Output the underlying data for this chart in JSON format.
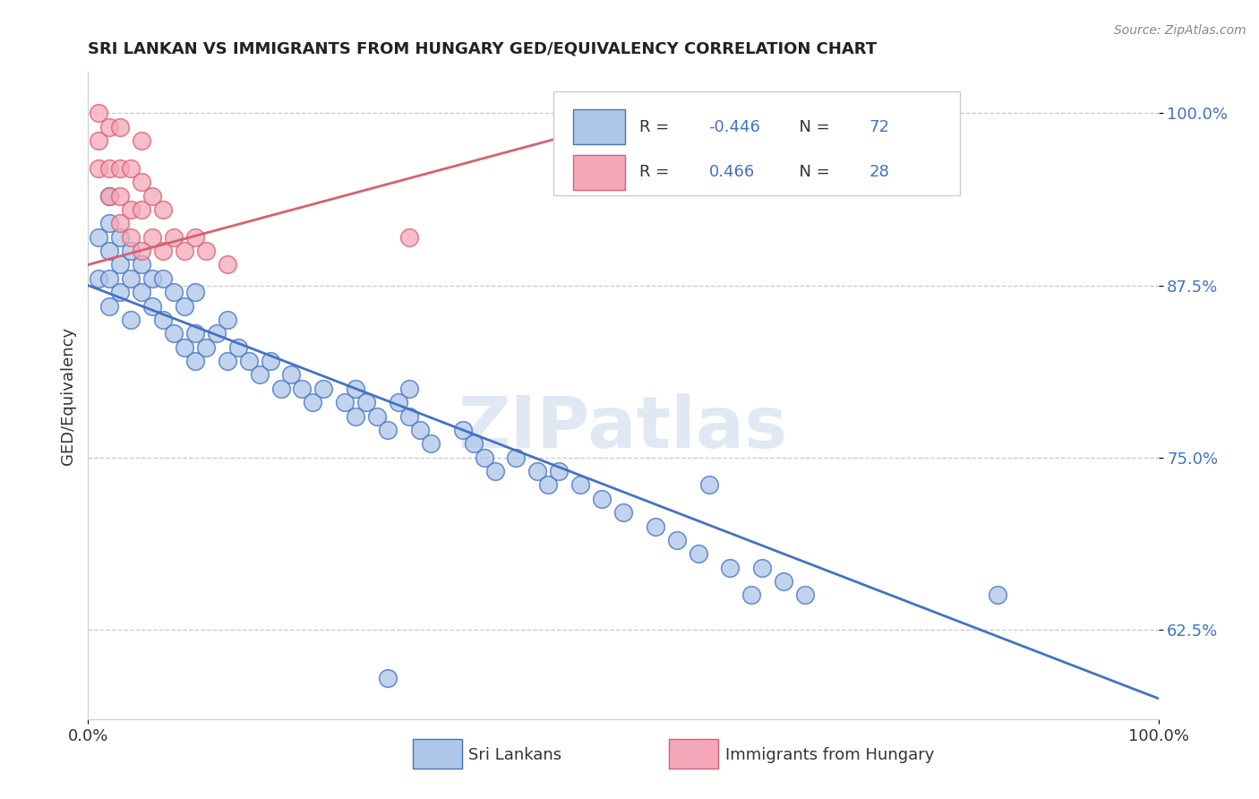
{
  "title": "SRI LANKAN VS IMMIGRANTS FROM HUNGARY GED/EQUIVALENCY CORRELATION CHART",
  "source": "Source: ZipAtlas.com",
  "ylabel": "GED/Equivalency",
  "xlim": [
    0.0,
    1.0
  ],
  "ylim": [
    0.56,
    1.03
  ],
  "yticks": [
    0.625,
    0.75,
    0.875,
    1.0
  ],
  "ytick_labels": [
    "62.5%",
    "75.0%",
    "87.5%",
    "100.0%"
  ],
  "xticks": [
    0.0,
    1.0
  ],
  "xtick_labels": [
    "0.0%",
    "100.0%"
  ],
  "sri_lankans_R": -0.446,
  "sri_lankans_N": 72,
  "hungary_R": 0.466,
  "hungary_N": 28,
  "sri_lanka_color": "#aec6e8",
  "hungary_color": "#f4a7b9",
  "sri_lanka_line_color": "#4472c4",
  "hungary_line_color": "#d9606e",
  "watermark": "ZIPatlas",
  "sl_line_x0": 0.0,
  "sl_line_y0": 0.875,
  "sl_line_x1": 1.0,
  "sl_line_y1": 0.575,
  "hu_line_x0": 0.0,
  "hu_line_y0": 0.89,
  "hu_line_x1": 0.55,
  "hu_line_y1": 1.005,
  "sl_x": [
    0.01,
    0.01,
    0.02,
    0.02,
    0.02,
    0.02,
    0.02,
    0.03,
    0.03,
    0.03,
    0.04,
    0.04,
    0.04,
    0.05,
    0.05,
    0.06,
    0.06,
    0.07,
    0.07,
    0.08,
    0.08,
    0.09,
    0.09,
    0.1,
    0.1,
    0.1,
    0.11,
    0.12,
    0.13,
    0.13,
    0.14,
    0.15,
    0.16,
    0.17,
    0.18,
    0.19,
    0.2,
    0.21,
    0.22,
    0.24,
    0.25,
    0.25,
    0.26,
    0.27,
    0.28,
    0.29,
    0.3,
    0.3,
    0.31,
    0.32,
    0.35,
    0.36,
    0.37,
    0.38,
    0.4,
    0.42,
    0.43,
    0.44,
    0.46,
    0.48,
    0.5,
    0.53,
    0.55,
    0.57,
    0.6,
    0.62,
    0.63,
    0.65,
    0.67,
    0.85,
    0.28,
    0.58
  ],
  "sl_y": [
    0.88,
    0.91,
    0.86,
    0.88,
    0.9,
    0.92,
    0.94,
    0.87,
    0.89,
    0.91,
    0.85,
    0.88,
    0.9,
    0.87,
    0.89,
    0.86,
    0.88,
    0.85,
    0.88,
    0.84,
    0.87,
    0.83,
    0.86,
    0.82,
    0.84,
    0.87,
    0.83,
    0.84,
    0.82,
    0.85,
    0.83,
    0.82,
    0.81,
    0.82,
    0.8,
    0.81,
    0.8,
    0.79,
    0.8,
    0.79,
    0.78,
    0.8,
    0.79,
    0.78,
    0.77,
    0.79,
    0.78,
    0.8,
    0.77,
    0.76,
    0.77,
    0.76,
    0.75,
    0.74,
    0.75,
    0.74,
    0.73,
    0.74,
    0.73,
    0.72,
    0.71,
    0.7,
    0.69,
    0.68,
    0.67,
    0.65,
    0.67,
    0.66,
    0.65,
    0.65,
    0.59,
    0.73
  ],
  "hu_x": [
    0.01,
    0.01,
    0.01,
    0.02,
    0.02,
    0.02,
    0.03,
    0.03,
    0.03,
    0.03,
    0.04,
    0.04,
    0.04,
    0.05,
    0.05,
    0.05,
    0.05,
    0.06,
    0.06,
    0.07,
    0.07,
    0.08,
    0.09,
    0.1,
    0.11,
    0.13,
    0.3,
    0.55
  ],
  "hu_y": [
    0.96,
    0.98,
    1.0,
    0.94,
    0.96,
    0.99,
    0.92,
    0.94,
    0.96,
    0.99,
    0.91,
    0.93,
    0.96,
    0.9,
    0.93,
    0.95,
    0.98,
    0.91,
    0.94,
    0.9,
    0.93,
    0.91,
    0.9,
    0.91,
    0.9,
    0.89,
    0.91,
    1.0
  ]
}
